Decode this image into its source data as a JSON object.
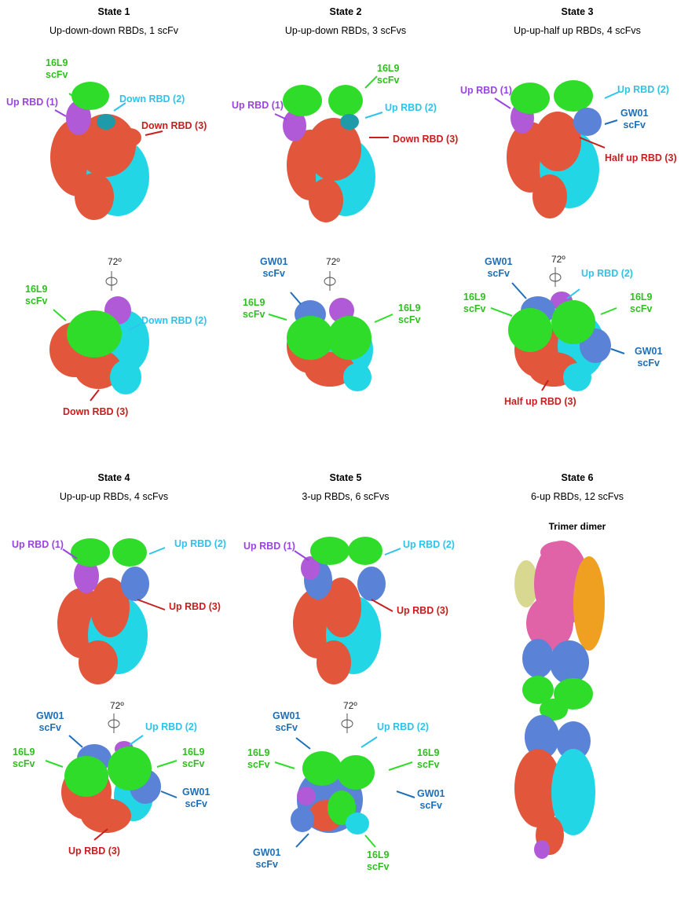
{
  "colors": {
    "green": "#2fdc2a",
    "purple": "#b05ad8",
    "cyan": "#22d6e6",
    "red": "#e2563c",
    "blue": "#5a82d6",
    "pink": "#e063a8",
    "orange": "#f0a020",
    "khaki": "#d8d890"
  },
  "rotation_label": "72º",
  "states": [
    {
      "title": "State 1",
      "subtitle": "Up-down-down RBDs, 1 scFv",
      "labels": {
        "a": "16L9\nscFv",
        "b": "Up RBD (1)",
        "c": "Down RBD (2)",
        "d": "Down RBD (3)",
        "e": "16L9\nscFv",
        "f": "Down RBD (2)",
        "g": "Down RBD (3)"
      }
    },
    {
      "title": "State 2",
      "subtitle": "Up-up-down RBDs, 3 scFvs",
      "labels": {
        "a": "16L9\nscFv",
        "b": "Up RBD (1)",
        "c": "Up RBD (2)",
        "d": "Down RBD (3)",
        "e": "GW01\nscFv",
        "f": "16L9\nscFv",
        "g": "16L9\nscFv"
      }
    },
    {
      "title": "State 3",
      "subtitle": "Up-up-half up RBDs, 4 scFvs",
      "labels": {
        "a": "Up RBD (1)",
        "b": "Up RBD (2)",
        "c": "GW01\nscFv",
        "d": "Half up RBD (3)",
        "e": "GW01\nscFv",
        "f": "Up RBD (2)",
        "g": "16L9\nscFv",
        "h": "16L9\nscFv",
        "i": "GW01\nscFv",
        "j": "Half up RBD (3)"
      }
    },
    {
      "title": "State 4",
      "subtitle": "Up-up-up RBDs, 4 scFvs",
      "labels": {
        "a": "Up RBD (1)",
        "b": "Up RBD (2)",
        "c": "Up RBD (3)",
        "d": "GW01\nscFv",
        "e": "Up RBD (2)",
        "f": "16L9\nscFv",
        "g": "16L9\nscFv",
        "h": "GW01\nscFv",
        "i": "Up RBD (3)"
      }
    },
    {
      "title": "State 5",
      "subtitle": "3-up RBDs, 6 scFvs",
      "labels": {
        "a": "Up RBD (1)",
        "b": "Up RBD (2)",
        "c": "Up RBD (3)",
        "d": "GW01\nscFv",
        "e": "Up RBD (2)",
        "f": "16L9\nscFv",
        "g": "16L9\nscFv",
        "h": "GW01\nscFv",
        "i": "GW01\nscFv",
        "j": "16L9\nscFv"
      }
    },
    {
      "title": "State 6",
      "subtitle": "6-up RBDs, 12 scFvs",
      "extra_title": "Trimer dimer",
      "labels": {}
    }
  ]
}
